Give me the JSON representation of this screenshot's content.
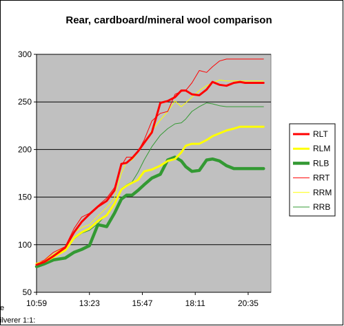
{
  "chart_data": {
    "type": "line",
    "title": "Rear, cardboard/mineral wool comparison",
    "xlabel": "",
    "ylabel": "",
    "ylim": [
      50,
      300
    ],
    "yticks": [
      50,
      100,
      150,
      200,
      250,
      300
    ],
    "xlim_minutes": [
      659,
      1297
    ],
    "xticks": [
      {
        "label": "10:59",
        "minutes": 659
      },
      {
        "label": "13:23",
        "minutes": 803
      },
      {
        "label": "15:47",
        "minutes": 947
      },
      {
        "label": "18:11",
        "minutes": 1091
      },
      {
        "label": "20:35",
        "minutes": 1235
      }
    ],
    "x_time": [
      "10:59",
      "11:21",
      "11:45",
      "12:17",
      "12:41",
      "13:02",
      "13:23",
      "13:46",
      "14:10",
      "14:31",
      "14:50",
      "15:04",
      "15:19",
      "15:35",
      "15:52",
      "16:13",
      "16:36",
      "16:56",
      "17:16",
      "17:33",
      "17:45",
      "18:02",
      "18:22",
      "18:42",
      "18:58",
      "19:17",
      "19:36",
      "19:56",
      "20:13",
      "20:27",
      "20:40",
      "20:54",
      "21:08",
      "21:17"
    ],
    "x_minutes": [
      659,
      681,
      705,
      737,
      761,
      782,
      803,
      826,
      850,
      871,
      890,
      904,
      919,
      935,
      952,
      973,
      996,
      1016,
      1036,
      1053,
      1065,
      1082,
      1102,
      1122,
      1138,
      1157,
      1176,
      1196,
      1213,
      1227,
      1240,
      1254,
      1268,
      1277
    ],
    "series": [
      {
        "name": "RLT",
        "color": "#ff0000",
        "width": 3,
        "values": [
          79,
          82,
          88,
          97,
          113,
          124,
          132,
          140,
          146,
          157,
          185,
          186,
          191,
          198,
          207,
          218,
          249,
          251,
          255,
          262,
          262,
          258,
          257,
          263,
          271,
          268,
          267,
          270,
          271,
          270,
          270,
          270,
          270,
          270
        ]
      },
      {
        "name": "RLM",
        "color": "#ffff00",
        "width": 3,
        "values": [
          80,
          82,
          87,
          94,
          107,
          113,
          117,
          125,
          131,
          143,
          158,
          162,
          165,
          168,
          177,
          179,
          183,
          188,
          190,
          197,
          204,
          206,
          206,
          210,
          214,
          217,
          220,
          222,
          224,
          224,
          224,
          224,
          224,
          224
        ]
      },
      {
        "name": "RLB",
        "color": "#339933",
        "width": 4.5,
        "values": [
          77,
          80,
          84,
          86,
          92,
          95,
          99,
          121,
          119,
          133,
          148,
          152,
          152,
          157,
          163,
          170,
          174,
          189,
          192,
          188,
          182,
          177,
          178,
          189,
          190,
          188,
          183,
          180,
          180,
          180,
          180,
          180,
          180,
          180
        ]
      },
      {
        "name": "RRT",
        "color": "#ff0000",
        "width": 1,
        "values": [
          80,
          84,
          92,
          98,
          117,
          129,
          133,
          141,
          149,
          160,
          183,
          192,
          192,
          198,
          210,
          230,
          238,
          240,
          258,
          261,
          262,
          270,
          283,
          281,
          287,
          293,
          295,
          295,
          295,
          295,
          295,
          295,
          295,
          295
        ]
      },
      {
        "name": "RRM",
        "color": "#ffff00",
        "width": 1,
        "values": [
          80,
          84,
          90,
          98,
          113,
          118,
          121,
          130,
          139,
          149,
          175,
          187,
          189,
          197,
          207,
          220,
          231,
          240,
          251,
          245,
          249,
          255,
          262,
          267,
          270,
          273,
          272,
          272,
          272,
          272,
          272,
          272,
          272,
          272
        ]
      },
      {
        "name": "RRB",
        "color": "#339933",
        "width": 1,
        "values": [
          79,
          82,
          87,
          94,
          106,
          112,
          115,
          122,
          132,
          143,
          159,
          163,
          166,
          176,
          189,
          203,
          215,
          222,
          227,
          228,
          232,
          240,
          245,
          249,
          248,
          246,
          245,
          245,
          245,
          245,
          245,
          245,
          245,
          245
        ]
      }
    ],
    "grid": true,
    "legend": "right",
    "plot_background": "#c0c0c0",
    "stray_labels": [
      "e",
      "ilverer 1:1:"
    ]
  }
}
